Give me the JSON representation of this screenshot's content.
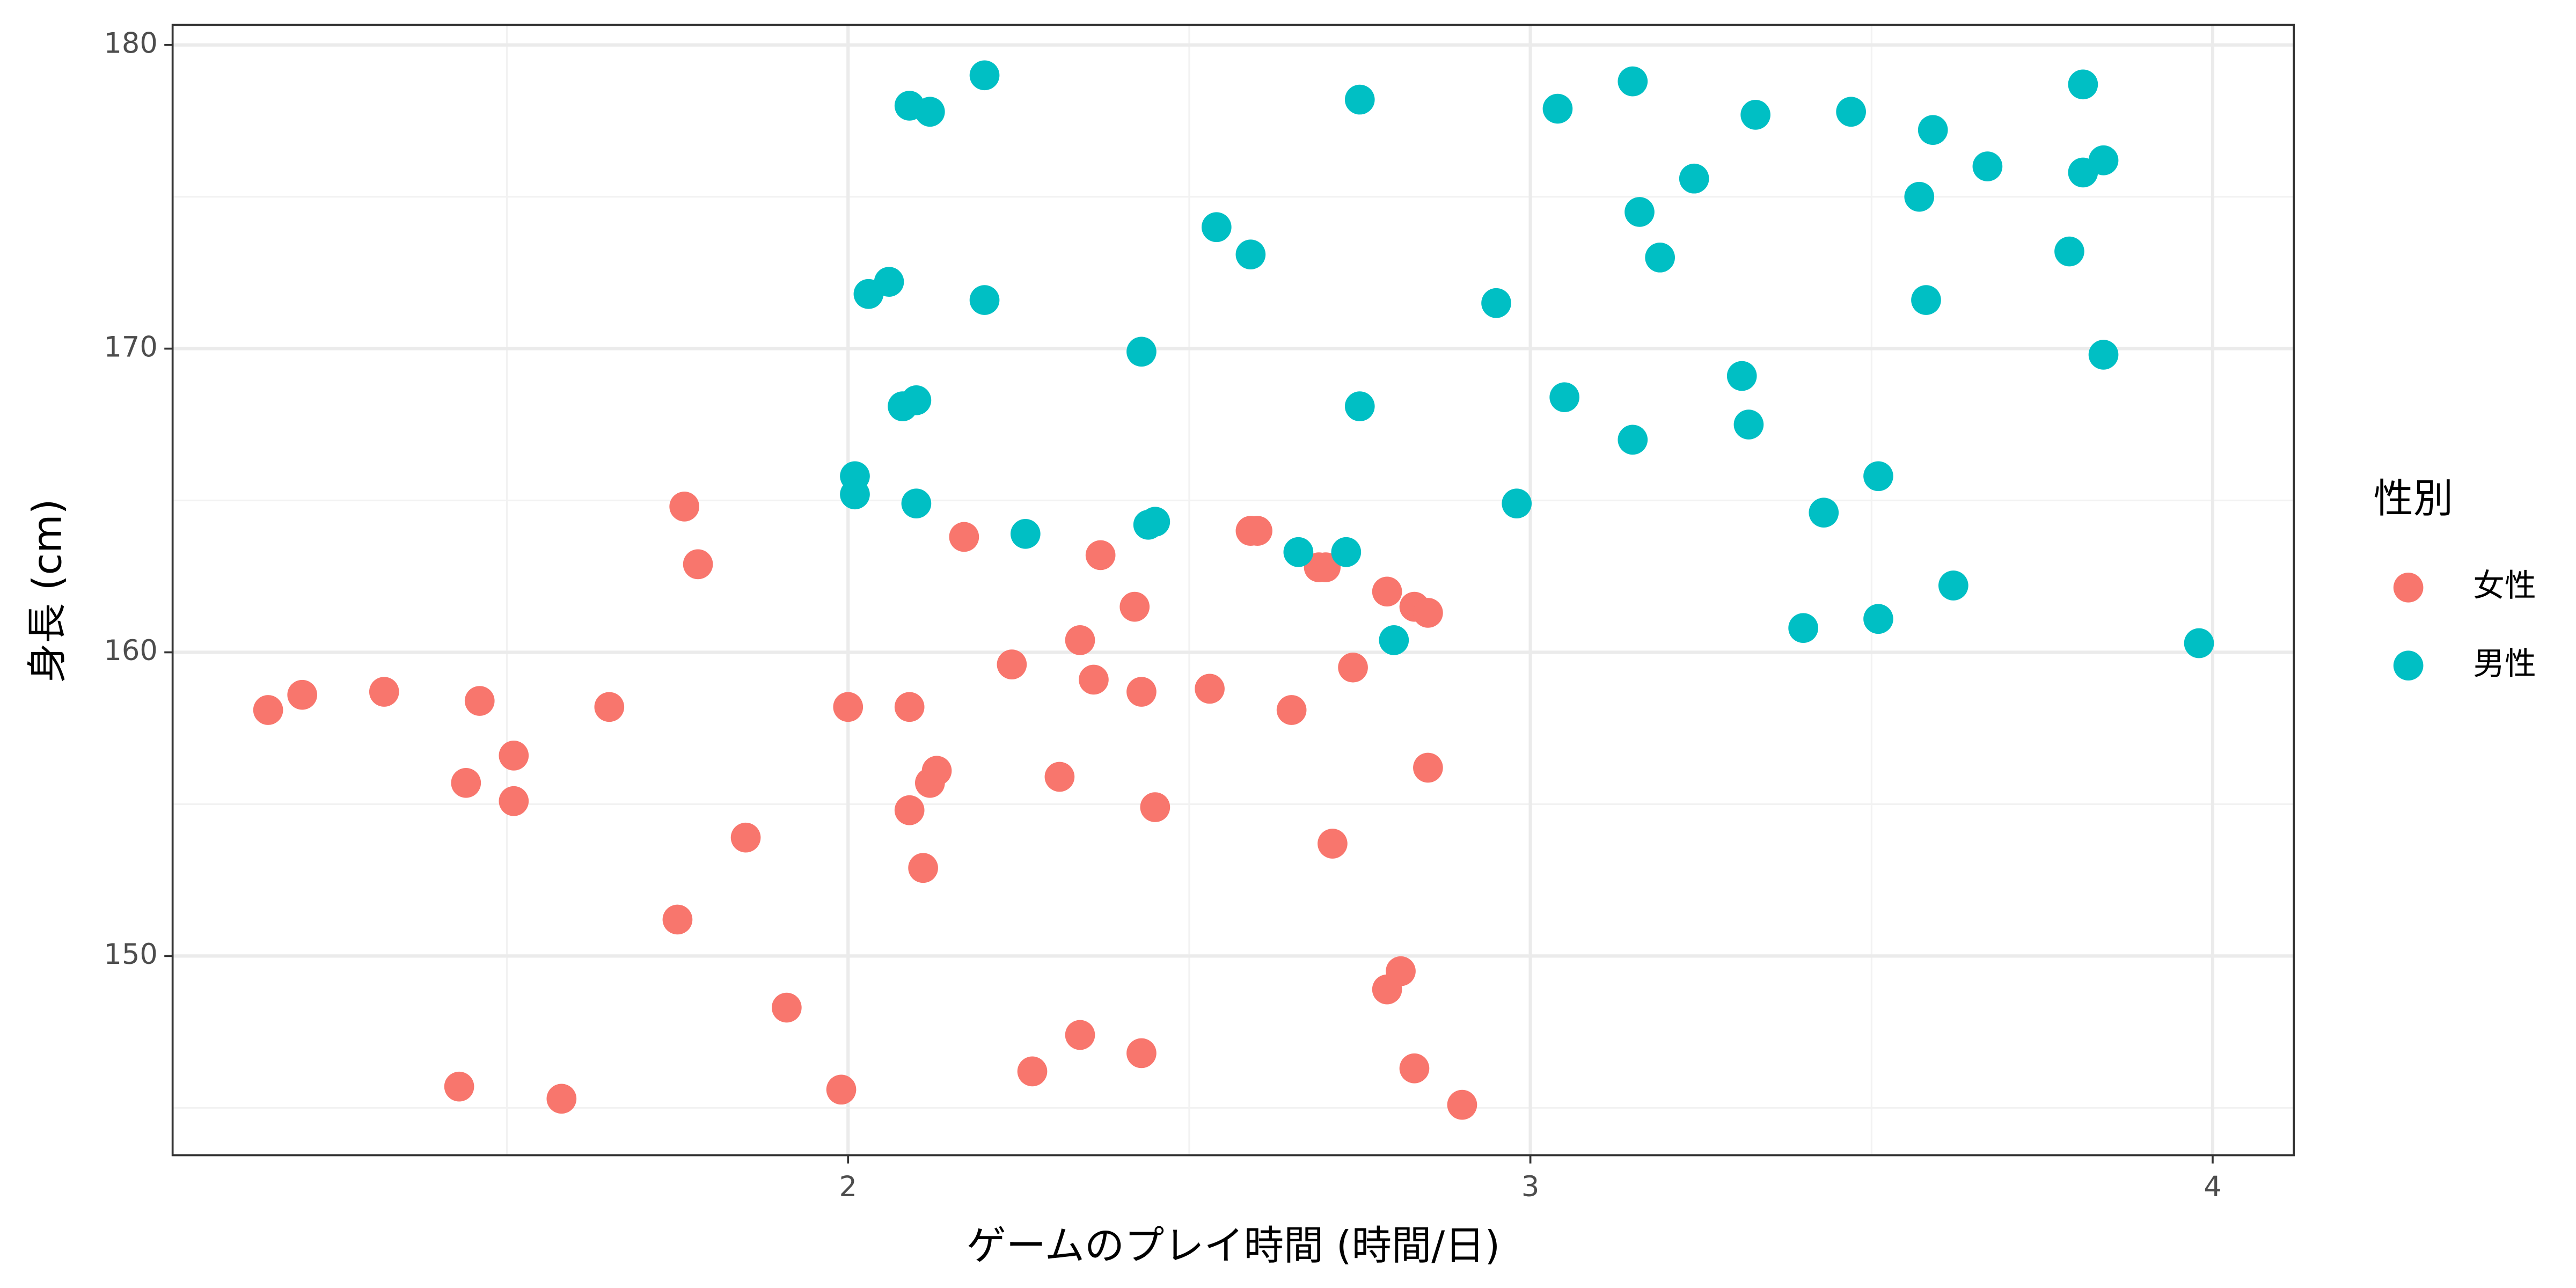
{
  "chart_data": {
    "type": "scatter",
    "x_label": "ゲームのプレイ時間 (時間/日)",
    "y_label": "身長 (cm)",
    "legend_title": "性別",
    "legend_position": "right",
    "grid": true,
    "xlim": [
      1.01,
      4.119
    ],
    "ylim": [
      143.44,
      180.66
    ],
    "xticks": [
      2,
      3,
      4
    ],
    "yticks": [
      150,
      160,
      170,
      180
    ],
    "x_minor_gridlines": [
      1.5,
      2.5,
      3.5
    ],
    "y_minor_gridlines": [
      145,
      155,
      165,
      175
    ],
    "series": [
      {
        "name": "女性",
        "color": "#F8766D",
        "x": [
          1.15,
          1.2,
          1.32,
          1.46,
          1.44,
          1.51,
          1.51,
          1.65,
          1.76,
          1.78,
          1.75,
          1.85,
          1.91,
          1.43,
          1.58,
          1.99,
          2.0,
          2.09,
          2.09,
          2.12,
          2.13,
          2.11,
          2.17,
          2.24,
          2.27,
          2.31,
          2.34,
          2.34,
          2.36,
          2.37,
          2.42,
          2.43,
          2.43,
          2.45,
          2.53,
          2.59,
          2.6,
          2.65,
          2.69,
          2.7,
          2.71,
          2.74,
          2.79,
          2.79,
          2.81,
          2.83,
          2.85,
          2.83,
          2.85,
          2.9
        ],
        "values": [
          158.1,
          158.6,
          158.7,
          158.4,
          155.7,
          156.6,
          155.1,
          158.2,
          164.8,
          162.9,
          151.2,
          153.9,
          148.3,
          145.7,
          145.3,
          145.6,
          158.2,
          158.2,
          154.8,
          155.7,
          156.1,
          152.9,
          163.8,
          159.6,
          146.2,
          155.9,
          147.4,
          160.4,
          159.1,
          163.2,
          161.5,
          158.7,
          146.8,
          154.9,
          158.8,
          164.0,
          164.0,
          158.1,
          162.8,
          162.8,
          153.7,
          159.5,
          162.0,
          148.9,
          149.5,
          161.5,
          161.3,
          146.3,
          156.2,
          145.1
        ]
      },
      {
        "name": "男性",
        "color": "#00BFC4",
        "x": [
          2.2,
          2.09,
          2.12,
          2.75,
          3.04,
          3.15,
          3.33,
          3.47,
          3.59,
          3.67,
          3.81,
          3.81,
          3.84,
          3.24,
          3.57,
          3.16,
          3.19,
          3.79,
          2.54,
          2.59,
          2.03,
          2.06,
          2.2,
          2.95,
          3.58,
          2.43,
          3.84,
          2.08,
          2.1,
          2.75,
          3.05,
          3.31,
          3.32,
          3.15,
          2.01,
          2.01,
          2.1,
          2.26,
          2.44,
          2.45,
          2.66,
          2.73,
          2.98,
          3.43,
          3.51,
          3.62,
          2.8,
          3.4,
          3.51,
          3.98
        ],
        "values": [
          179.0,
          178.0,
          177.8,
          178.2,
          177.9,
          178.8,
          177.7,
          177.8,
          177.2,
          176.0,
          178.7,
          175.8,
          176.2,
          175.6,
          175.0,
          174.5,
          173.0,
          173.2,
          174.0,
          173.1,
          171.8,
          172.2,
          171.6,
          171.5,
          171.6,
          169.9,
          169.8,
          168.1,
          168.3,
          168.1,
          168.4,
          169.1,
          167.5,
          167.0,
          165.8,
          165.2,
          164.9,
          163.9,
          164.2,
          164.3,
          163.3,
          163.3,
          164.9,
          164.6,
          165.8,
          162.2,
          160.4,
          160.8,
          161.1,
          160.3
        ]
      }
    ]
  }
}
